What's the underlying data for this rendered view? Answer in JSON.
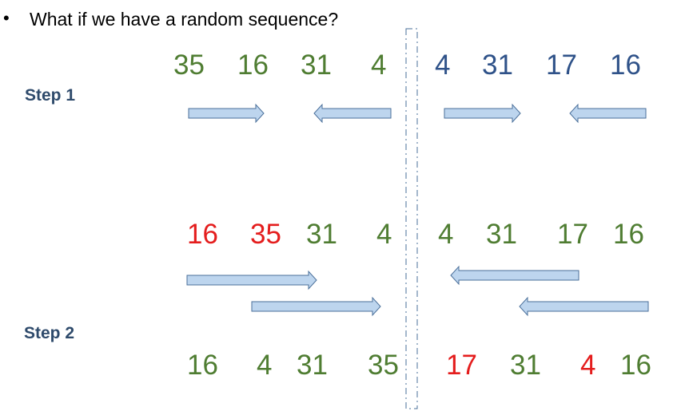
{
  "bullet": "•",
  "title": "What if we have a random sequence?",
  "steps": {
    "step1": "Step 1",
    "step2": "Step 2"
  },
  "colors": {
    "green": "#4f7d32",
    "blue": "#2f5289",
    "red": "#e41d1d",
    "arrow_fill": "#bdd5ee",
    "arrow_stroke": "#4a6f9a",
    "divider": "#4a6f9a"
  },
  "rows": [
    {
      "name": "row-1",
      "numbers": [
        {
          "text": "35",
          "color": "green"
        },
        {
          "text": "16",
          "color": "green"
        },
        {
          "text": "31",
          "color": "green"
        },
        {
          "text": "4",
          "color": "green"
        },
        {
          "text": "4",
          "color": "blue"
        },
        {
          "text": "31",
          "color": "blue"
        },
        {
          "text": "17",
          "color": "blue"
        },
        {
          "text": "16",
          "color": "blue"
        }
      ]
    },
    {
      "name": "row-2",
      "numbers": [
        {
          "text": "16",
          "color": "red"
        },
        {
          "text": "35",
          "color": "red"
        },
        {
          "text": "31",
          "color": "green"
        },
        {
          "text": "4",
          "color": "green"
        },
        {
          "text": "4",
          "color": "green"
        },
        {
          "text": "31",
          "color": "green"
        },
        {
          "text": "17",
          "color": "green"
        },
        {
          "text": "16",
          "color": "green"
        }
      ]
    },
    {
      "name": "row-3",
      "numbers": [
        {
          "text": "16",
          "color": "green"
        },
        {
          "text": "4",
          "color": "green"
        },
        {
          "text": "31",
          "color": "green"
        },
        {
          "text": "35",
          "color": "green"
        },
        {
          "text": "17",
          "color": "red"
        },
        {
          "text": "31",
          "color": "green"
        },
        {
          "text": "4",
          "color": "red"
        },
        {
          "text": "16",
          "color": "green"
        }
      ]
    }
  ],
  "arrows": [
    {
      "name": "arrow-step1-a",
      "direction": "right"
    },
    {
      "name": "arrow-step1-b",
      "direction": "left"
    },
    {
      "name": "arrow-step1-c",
      "direction": "right"
    },
    {
      "name": "arrow-step1-d",
      "direction": "left"
    },
    {
      "name": "arrow-step2-a",
      "direction": "right"
    },
    {
      "name": "arrow-step2-b",
      "direction": "right"
    },
    {
      "name": "arrow-step2-c",
      "direction": "left"
    },
    {
      "name": "arrow-step2-d",
      "direction": "left"
    }
  ]
}
